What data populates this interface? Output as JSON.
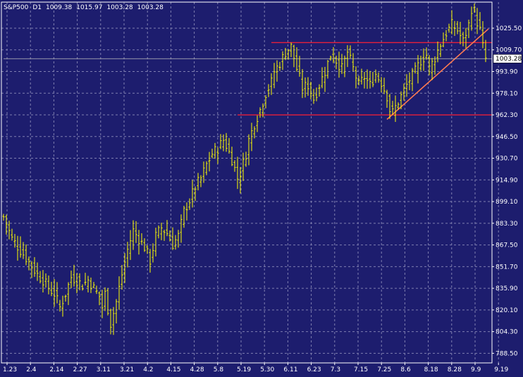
{
  "chart_data": {
    "type": "bar",
    "symbol": "S&P500",
    "timeframe": "D1",
    "ohlc_header": [
      "1009.38",
      "1015.97",
      "1003.28",
      "1003.28"
    ],
    "last_price": 1003.28,
    "last_price_label": "1003.28",
    "ylim": [
      781.5,
      1044.5
    ],
    "y_ticks": [
      "1025.50",
      "1009.70",
      "993.90",
      "978.10",
      "962.30",
      "946.50",
      "930.70",
      "914.90",
      "899.10",
      "883.30",
      "867.50",
      "851.70",
      "835.90",
      "820.10",
      "804.30",
      "788.50"
    ],
    "x_ticks": [
      "1.23",
      "2.4",
      "2.14",
      "2.27",
      "3.11",
      "3.21",
      "4.2",
      "4.15",
      "4.28",
      "5.8",
      "5.19",
      "5.30",
      "6.11",
      "6.23",
      "7.3",
      "7.15",
      "7.25",
      "8.6",
      "8.18",
      "8.28",
      "9.9",
      "9.19"
    ],
    "grid": true,
    "anchors": [
      {
        "i": 0,
        "c": 888
      },
      {
        "i": 3,
        "c": 872
      },
      {
        "i": 8,
        "c": 858
      },
      {
        "i": 12,
        "c": 846
      },
      {
        "i": 14,
        "c": 842
      },
      {
        "i": 16,
        "c": 836
      },
      {
        "i": 18,
        "c": 832
      },
      {
        "i": 20,
        "c": 822
      },
      {
        "i": 22,
        "c": 832
      },
      {
        "i": 24,
        "c": 844
      },
      {
        "i": 26,
        "c": 842
      },
      {
        "i": 28,
        "c": 838
      },
      {
        "i": 30,
        "c": 842
      },
      {
        "i": 32,
        "c": 836
      },
      {
        "i": 34,
        "c": 830
      },
      {
        "i": 35,
        "c": 822
      },
      {
        "i": 36,
        "c": 832
      },
      {
        "i": 38,
        "c": 810
      },
      {
        "i": 40,
        "c": 826
      },
      {
        "i": 42,
        "c": 846
      },
      {
        "i": 44,
        "c": 864
      },
      {
        "i": 46,
        "c": 878
      },
      {
        "i": 48,
        "c": 872
      },
      {
        "i": 50,
        "c": 866
      },
      {
        "i": 52,
        "c": 856
      },
      {
        "i": 54,
        "c": 874
      },
      {
        "i": 56,
        "c": 880
      },
      {
        "i": 58,
        "c": 876
      },
      {
        "i": 60,
        "c": 868
      },
      {
        "i": 62,
        "c": 874
      },
      {
        "i": 64,
        "c": 892
      },
      {
        "i": 66,
        "c": 900
      },
      {
        "i": 68,
        "c": 910
      },
      {
        "i": 70,
        "c": 916
      },
      {
        "i": 72,
        "c": 926
      },
      {
        "i": 74,
        "c": 934
      },
      {
        "i": 76,
        "c": 938
      },
      {
        "i": 78,
        "c": 944
      },
      {
        "i": 79,
        "c": 940
      },
      {
        "i": 81,
        "c": 930
      },
      {
        "i": 83,
        "c": 916
      },
      {
        "i": 84,
        "c": 920
      },
      {
        "i": 86,
        "c": 934
      },
      {
        "i": 87,
        "c": 944
      },
      {
        "i": 89,
        "c": 956
      },
      {
        "i": 91,
        "c": 966
      },
      {
        "i": 93,
        "c": 978
      },
      {
        "i": 95,
        "c": 986
      },
      {
        "i": 96,
        "c": 994
      },
      {
        "i": 98,
        "c": 1000
      },
      {
        "i": 100,
        "c": 1008
      },
      {
        "i": 102,
        "c": 1012
      },
      {
        "i": 104,
        "c": 996
      },
      {
        "i": 106,
        "c": 982
      },
      {
        "i": 108,
        "c": 984
      },
      {
        "i": 110,
        "c": 974
      },
      {
        "i": 112,
        "c": 984
      },
      {
        "i": 114,
        "c": 994
      },
      {
        "i": 116,
        "c": 1006
      },
      {
        "i": 118,
        "c": 1002
      },
      {
        "i": 120,
        "c": 996
      },
      {
        "i": 122,
        "c": 1008
      },
      {
        "i": 124,
        "c": 996
      },
      {
        "i": 126,
        "c": 984
      },
      {
        "i": 128,
        "c": 990
      },
      {
        "i": 130,
        "c": 984
      },
      {
        "i": 132,
        "c": 992
      },
      {
        "i": 134,
        "c": 986
      },
      {
        "i": 136,
        "c": 976
      },
      {
        "i": 137,
        "c": 966
      },
      {
        "i": 138,
        "c": 964
      },
      {
        "i": 140,
        "c": 972
      },
      {
        "i": 142,
        "c": 980
      },
      {
        "i": 144,
        "c": 988
      },
      {
        "i": 146,
        "c": 994
      },
      {
        "i": 148,
        "c": 1002
      },
      {
        "i": 150,
        "c": 1006
      },
      {
        "i": 151,
        "c": 996
      },
      {
        "i": 153,
        "c": 1004
      },
      {
        "i": 155,
        "c": 1014
      },
      {
        "i": 157,
        "c": 1022
      },
      {
        "i": 159,
        "c": 1028
      },
      {
        "i": 161,
        "c": 1024
      },
      {
        "i": 163,
        "c": 1016
      },
      {
        "i": 165,
        "c": 1028
      },
      {
        "i": 166,
        "c": 1040
      },
      {
        "i": 167,
        "c": 1036
      },
      {
        "i": 169,
        "c": 1024
      },
      {
        "i": 170,
        "c": 1012
      },
      {
        "i": 171,
        "c": 1003.28
      }
    ],
    "annotations": [
      {
        "kind": "hline",
        "y": 1015,
        "from_bar": 95,
        "to_bar": 174,
        "color": "#e8203a"
      },
      {
        "kind": "hline",
        "y": 962.3,
        "from_bar": 83,
        "to_bar": 174,
        "color": "#e8203a"
      },
      {
        "kind": "trendline",
        "from": [
          136,
          959
        ],
        "to": [
          172,
          1025
        ],
        "color": "#ff7a50"
      },
      {
        "kind": "hline",
        "y": 1003.28,
        "from_bar": 0,
        "to_bar": 174,
        "color": "#c0c0c0"
      }
    ],
    "colors": {
      "background": "#1d1d6e",
      "bars": "#ffff00",
      "grid": "#7f7fb0",
      "text": "#ffffff"
    }
  }
}
